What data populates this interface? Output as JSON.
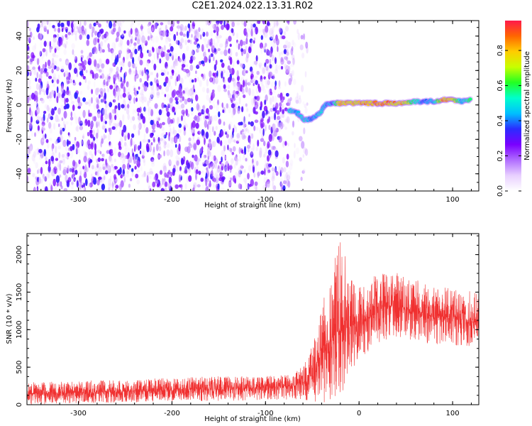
{
  "title": "C2E1.2024.022.13.31.R02",
  "colorbar": {
    "label": "Normalized spectral amplitude",
    "ticks": [
      0.0,
      0.2,
      0.4,
      0.6,
      0.8
    ],
    "tick_labels": [
      "0.0",
      "0.2",
      "0.4",
      "0.6",
      "0.8"
    ],
    "range": [
      0,
      0.97
    ],
    "colors": [
      "#ffffff",
      "#e8d0ff",
      "#b06cff",
      "#7a00ff",
      "#2b2bff",
      "#00bfff",
      "#00ffcc",
      "#22ff22",
      "#c8ff00",
      "#ffcc00",
      "#ff6600",
      "#ff1a4b"
    ]
  },
  "chart_data": [
    {
      "type": "heatmap",
      "title": "",
      "xlabel": "Height of straight line (km)",
      "ylabel": "Frequency (Hz)",
      "xlim": [
        -355,
        128
      ],
      "ylim": [
        -50,
        49
      ],
      "x_ticks": [
        -300,
        -200,
        -100,
        0,
        100
      ],
      "x_tick_labels": [
        "-300",
        "-200",
        "-100",
        "0",
        "100"
      ],
      "y_ticks": [
        -40,
        -20,
        0,
        20,
        40
      ],
      "y_tick_labels": [
        "-40",
        "-20",
        "0",
        "20",
        "40"
      ],
      "noise_region_x": [
        -355,
        -55
      ],
      "signal_track": [
        {
          "x": -75,
          "y": -3,
          "amp": 0.55
        },
        {
          "x": -65,
          "y": -5,
          "amp": 0.5
        },
        {
          "x": -58,
          "y": -9,
          "amp": 0.55
        },
        {
          "x": -50,
          "y": -8,
          "amp": 0.45
        },
        {
          "x": -42,
          "y": -5,
          "amp": 0.55
        },
        {
          "x": -36,
          "y": 0,
          "amp": 0.5
        },
        {
          "x": -28,
          "y": 1,
          "amp": 0.45
        },
        {
          "x": -20,
          "y": 1,
          "amp": 0.9
        },
        {
          "x": -10,
          "y": 1,
          "amp": 0.85
        },
        {
          "x": 0,
          "y": 1,
          "amp": 0.9
        },
        {
          "x": 10,
          "y": 1,
          "amp": 0.9
        },
        {
          "x": 20,
          "y": 1,
          "amp": 0.95
        },
        {
          "x": 30,
          "y": 1,
          "amp": 0.95
        },
        {
          "x": 40,
          "y": 1,
          "amp": 0.9
        },
        {
          "x": 50,
          "y": 1,
          "amp": 0.85
        },
        {
          "x": 60,
          "y": 2,
          "amp": 0.6
        },
        {
          "x": 70,
          "y": 2,
          "amp": 0.45
        },
        {
          "x": 80,
          "y": 2,
          "amp": 0.55
        },
        {
          "x": 90,
          "y": 3,
          "amp": 0.9
        },
        {
          "x": 100,
          "y": 3,
          "amp": 0.9
        },
        {
          "x": 110,
          "y": 2,
          "amp": 0.5
        },
        {
          "x": 120,
          "y": 3,
          "amp": 0.7
        }
      ]
    },
    {
      "type": "line",
      "title": "",
      "xlabel": "Height of straight line (km)",
      "ylabel": "SNR (10 * v/v)",
      "xlim": [
        -355,
        128
      ],
      "ylim": [
        0,
        2280
      ],
      "x_ticks": [
        -300,
        -200,
        -100,
        0,
        100
      ],
      "x_tick_labels": [
        "-300",
        "-200",
        "-100",
        "0",
        "100"
      ],
      "y_ticks": [
        0,
        500,
        1000,
        1500,
        2000
      ],
      "y_tick_labels": [
        "0",
        "500",
        "1000",
        "1500",
        "2000"
      ],
      "series": [
        {
          "color": "#f03030",
          "envelope": [
            {
              "x": -355,
              "low": 0,
              "mean": 150,
              "high": 300
            },
            {
              "x": -300,
              "low": 20,
              "mean": 160,
              "high": 320
            },
            {
              "x": -250,
              "low": 30,
              "mean": 180,
              "high": 330
            },
            {
              "x": -200,
              "low": 40,
              "mean": 195,
              "high": 360
            },
            {
              "x": -150,
              "low": 50,
              "mean": 210,
              "high": 380
            },
            {
              "x": -100,
              "low": 60,
              "mean": 230,
              "high": 380
            },
            {
              "x": -70,
              "low": 70,
              "mean": 250,
              "high": 400
            },
            {
              "x": -55,
              "low": 60,
              "mean": 300,
              "high": 600
            },
            {
              "x": -45,
              "low": 30,
              "mean": 500,
              "high": 1000
            },
            {
              "x": -35,
              "low": 30,
              "mean": 800,
              "high": 1600
            },
            {
              "x": -25,
              "low": 50,
              "mean": 950,
              "high": 2000
            },
            {
              "x": -20,
              "low": 100,
              "mean": 1000,
              "high": 2280
            },
            {
              "x": -10,
              "low": 400,
              "mean": 1050,
              "high": 1700
            },
            {
              "x": 0,
              "low": 600,
              "mean": 1100,
              "high": 1600
            },
            {
              "x": 10,
              "low": 700,
              "mean": 1150,
              "high": 1650
            },
            {
              "x": 25,
              "low": 850,
              "mean": 1300,
              "high": 1800
            },
            {
              "x": 40,
              "low": 900,
              "mean": 1320,
              "high": 1800
            },
            {
              "x": 60,
              "low": 850,
              "mean": 1250,
              "high": 1680
            },
            {
              "x": 80,
              "low": 800,
              "mean": 1180,
              "high": 1600
            },
            {
              "x": 100,
              "low": 780,
              "mean": 1150,
              "high": 1550
            },
            {
              "x": 128,
              "low": 750,
              "mean": 1100,
              "high": 1500
            }
          ]
        }
      ]
    }
  ]
}
